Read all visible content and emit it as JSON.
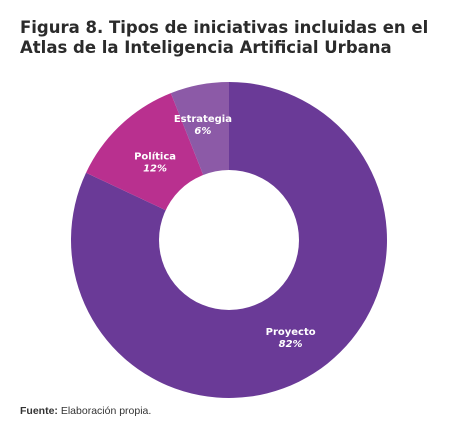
{
  "figure": {
    "title": "Figura 8. Tipos de iniciativas incluidas en el Atlas de la Inteligencia Artificial Urbana",
    "source_label": "Fuente:",
    "source_text": "Elaboración propia."
  },
  "chart_data": {
    "type": "pie",
    "subtype": "donut",
    "categories": [
      "Proyecto",
      "Política",
      "Estrategia"
    ],
    "values": [
      82,
      12,
      6
    ],
    "value_labels": [
      "82%",
      "12%",
      "6%"
    ],
    "colors": [
      "#6a3a97",
      "#b9308f",
      "#8c5aa7"
    ],
    "title": "",
    "legend": "none"
  }
}
